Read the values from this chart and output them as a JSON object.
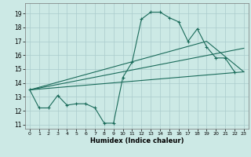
{
  "background_color": "#cce9e5",
  "grid_color": "#aacccc",
  "line_color": "#1a6b5a",
  "xlabel": "Humidex (Indice chaleur)",
  "ylim": [
    10.7,
    19.75
  ],
  "xlim": [
    -0.5,
    23.5
  ],
  "yticks": [
    11,
    12,
    13,
    14,
    15,
    16,
    17,
    18,
    19
  ],
  "xticks": [
    0,
    1,
    2,
    3,
    4,
    5,
    6,
    7,
    8,
    9,
    10,
    11,
    12,
    13,
    14,
    15,
    16,
    17,
    18,
    19,
    20,
    21,
    22,
    23
  ],
  "curve1_x": [
    0,
    1,
    2,
    3,
    4,
    5,
    6,
    7,
    8,
    9,
    10,
    11,
    12,
    13,
    14,
    15,
    16,
    17,
    18,
    19,
    20,
    21,
    22
  ],
  "curve1_y": [
    13.5,
    12.2,
    12.2,
    13.1,
    12.4,
    12.5,
    12.5,
    12.2,
    11.1,
    11.1,
    14.4,
    15.5,
    18.6,
    19.1,
    19.1,
    18.7,
    18.4,
    17.0,
    17.9,
    16.6,
    15.8,
    15.8,
    14.8
  ],
  "line1_x": [
    0,
    23
  ],
  "line1_y": [
    13.5,
    14.8
  ],
  "line2_x": [
    0,
    23
  ],
  "line2_y": [
    13.5,
    16.5
  ],
  "line3_x": [
    0,
    19,
    23
  ],
  "line3_y": [
    13.5,
    17.0,
    14.8
  ]
}
